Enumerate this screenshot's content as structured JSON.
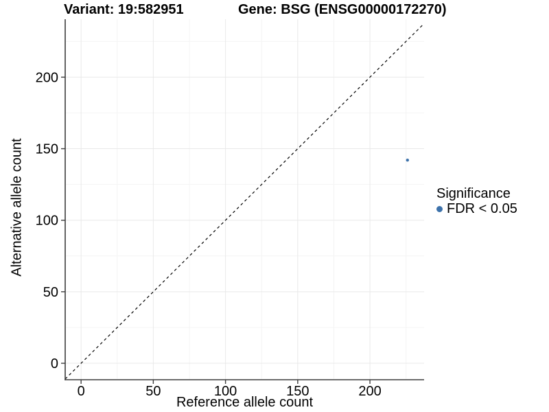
{
  "chart_data": {
    "type": "scatter",
    "title_parts": {
      "variant": "Variant: 19:582951",
      "gene": "Gene: BSG (ENSG00000172270)"
    },
    "xlabel": "Reference allele count",
    "ylabel": "Alternative allele count",
    "xlim": [
      -11,
      237.5
    ],
    "ylim": [
      -11.5,
      240.5
    ],
    "xticks": [
      0,
      50,
      100,
      150,
      200
    ],
    "yticks": [
      0,
      50,
      100,
      150,
      200
    ],
    "xticks_minor": [
      25,
      75,
      125,
      175,
      225
    ],
    "yticks_minor": [
      25,
      75,
      125,
      175,
      225
    ],
    "grid": {
      "major": true,
      "minor": true
    },
    "reference_line": {
      "kind": "identity",
      "dashed": true,
      "color": "#000000"
    },
    "series": [
      {
        "name": "FDR < 0.05",
        "color": "#3d72ab",
        "points": [
          {
            "x": 226,
            "y": 142
          }
        ]
      }
    ],
    "legend": {
      "position": "right",
      "title": "Significance",
      "items": [
        {
          "label": "FDR < 0.05",
          "color": "#3d72ab",
          "marker": "circle"
        }
      ]
    }
  },
  "colors": {
    "background": "#ffffff",
    "text": "#000000",
    "axis": "#3c3c3c",
    "grid_major": "#e9e9e9",
    "grid_minor": "#f4f4f4",
    "point": "#3d72ab",
    "reference_line": "#000000"
  }
}
